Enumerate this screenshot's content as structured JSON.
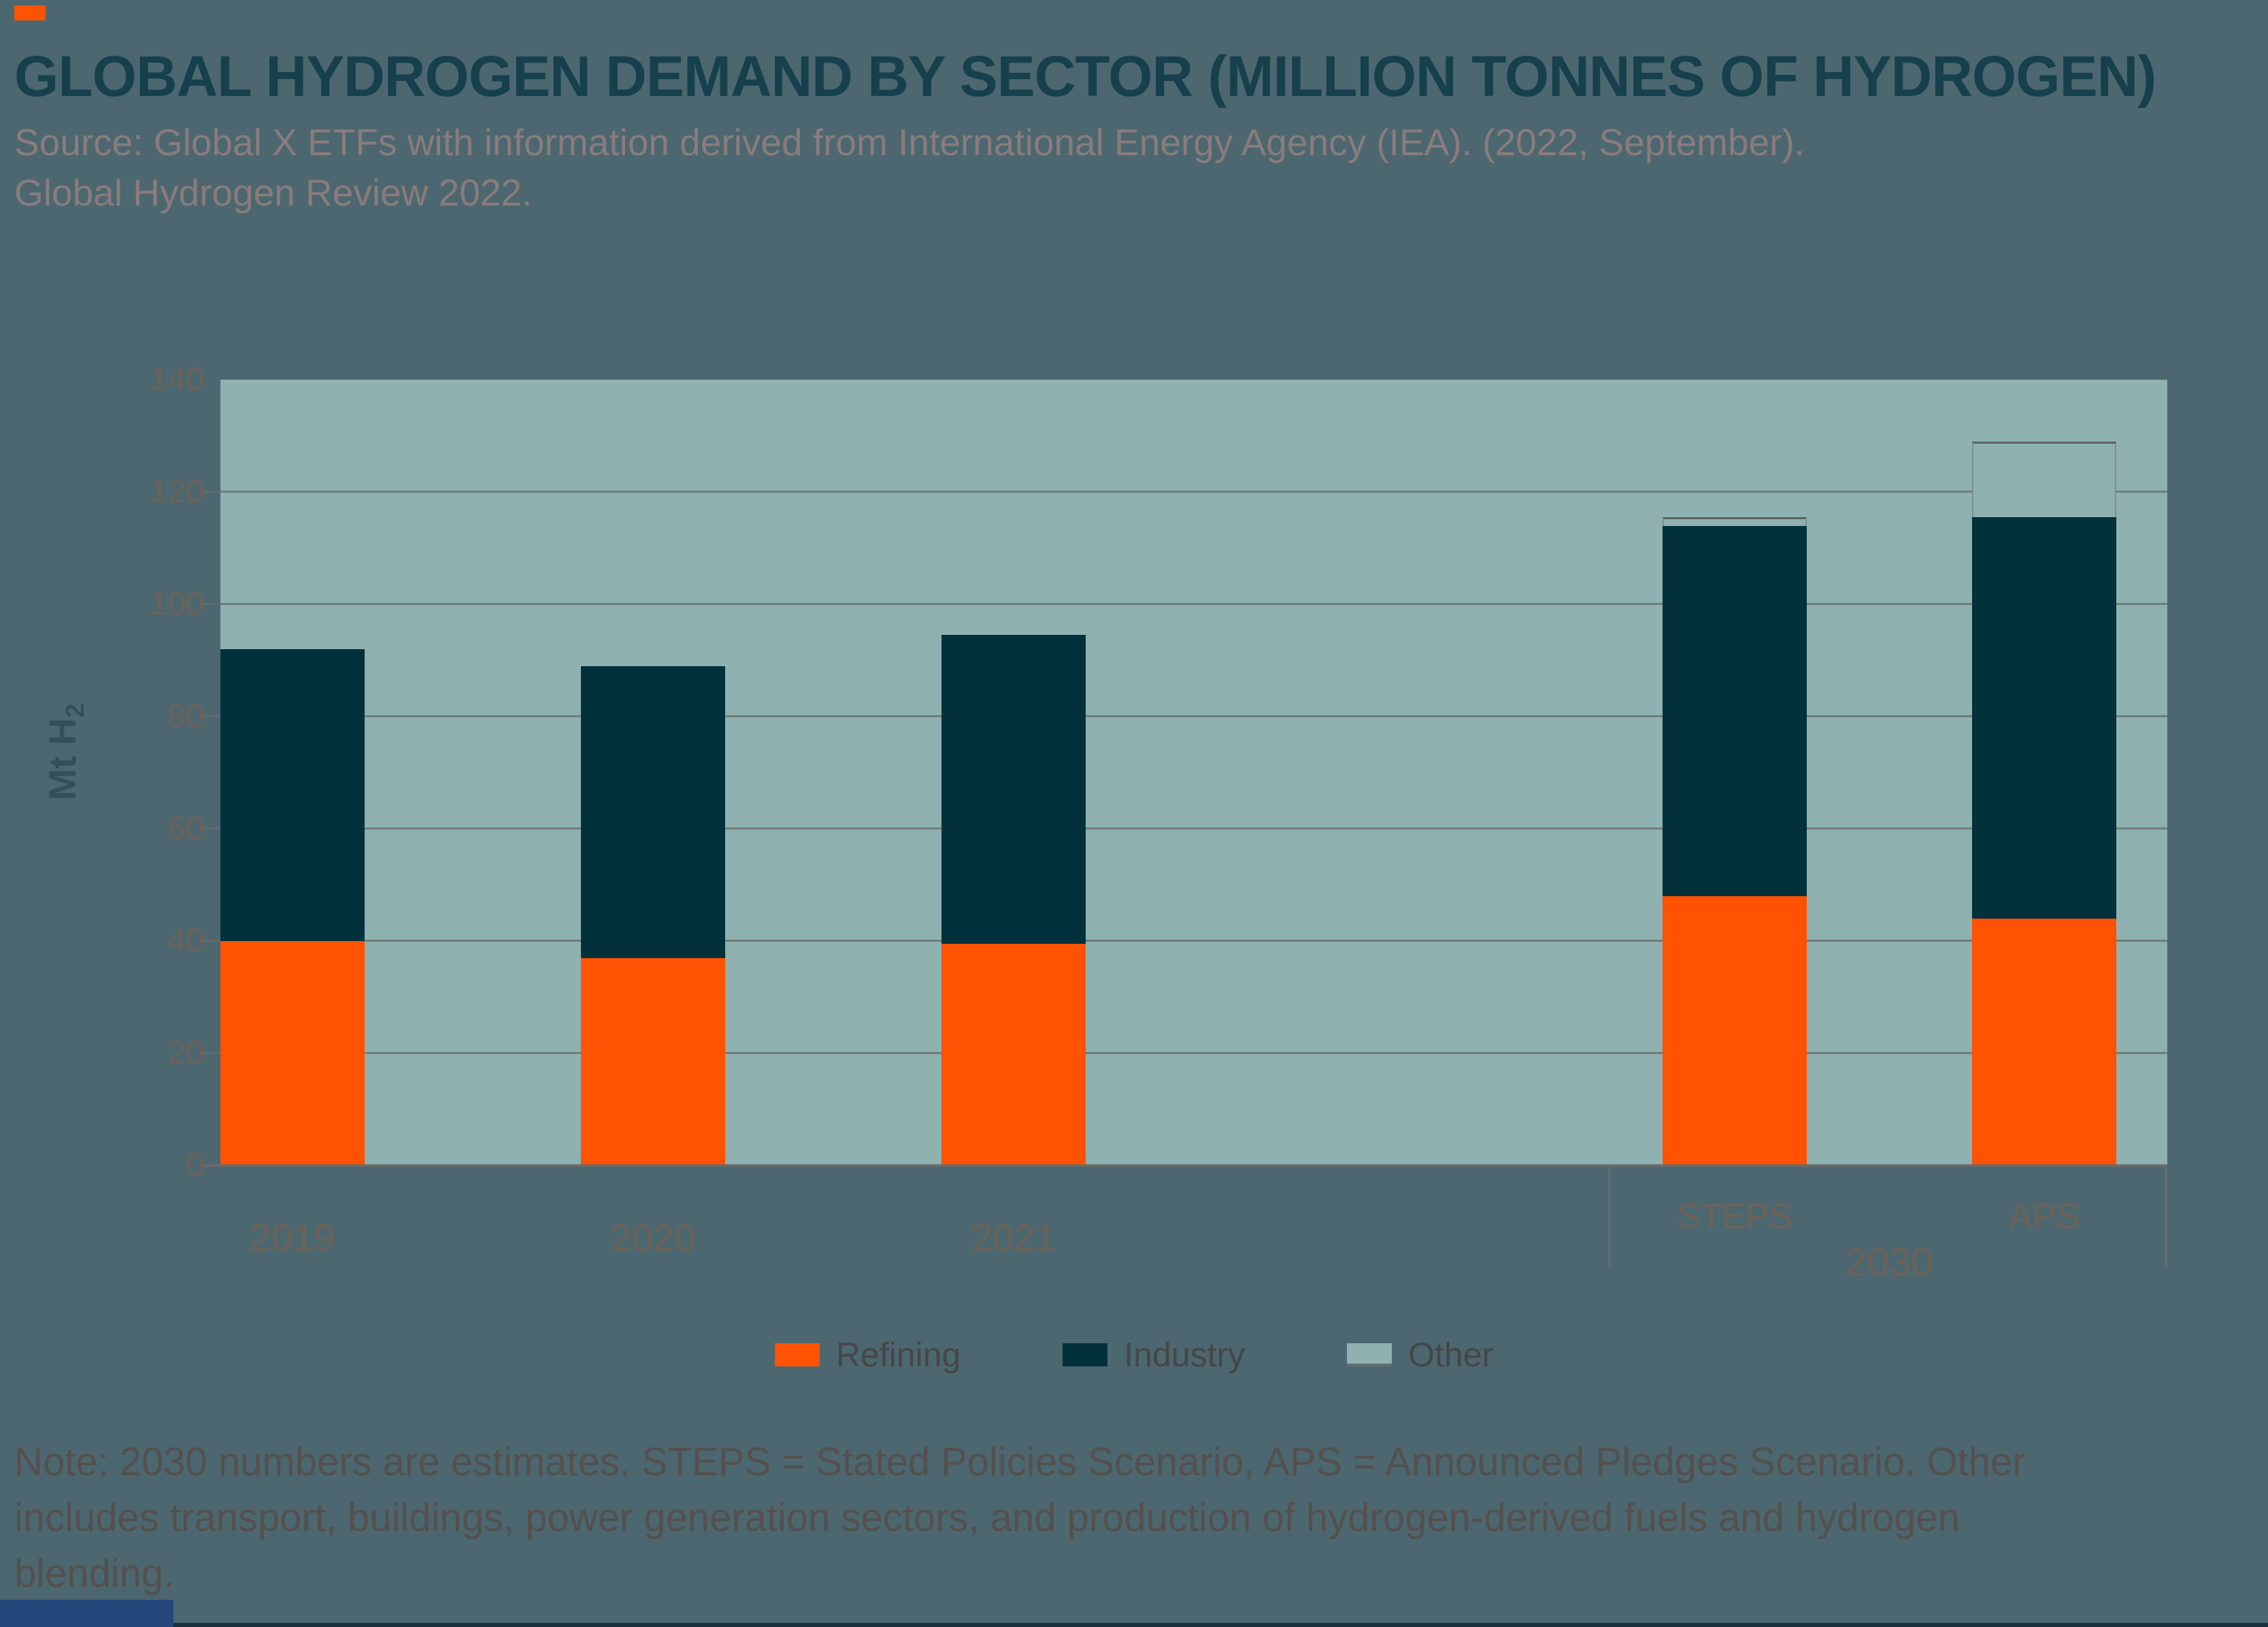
{
  "header": {
    "title": "GLOBAL HYDROGEN DEMAND BY SECTOR (MILLION TONNES OF HYDROGEN)",
    "source_lines": [
      "Source: Global X ETFs with information derived from International Energy Agency (IEA). (2022, September).",
      "Global Hydrogen Review 2022."
    ]
  },
  "colors": {
    "page_background": "#4C6770",
    "plot_background": "#8FB1AF",
    "refining": "#FF5203",
    "industry": "#02313B",
    "other": "#8FB1AF",
    "title_text": "#16404B",
    "accent_bar": "#FF5203",
    "footer_bar": "#24477C"
  },
  "chart_data": {
    "type": "bar",
    "stacked": true,
    "title": "Global Hydrogen Demand by Sector (Million Tonnes of Hydrogen)",
    "categories": [
      "2019",
      "2020",
      "2021",
      "STEPS",
      "APS"
    ],
    "group_label": "2030",
    "group_members": [
      "STEPS",
      "APS"
    ],
    "series": [
      {
        "name": "Refining",
        "color": "#FF5203",
        "values": [
          40,
          37,
          39.5,
          48,
          44
        ]
      },
      {
        "name": "Industry",
        "color": "#02313B",
        "values": [
          52,
          52,
          55,
          66,
          71.5
        ]
      },
      {
        "name": "Other",
        "color": "#8FB1AF",
        "values": [
          0,
          0,
          0,
          1.5,
          13.5
        ]
      }
    ],
    "totals": [
      92,
      89,
      94.5,
      115.5,
      129
    ],
    "xlabel": "",
    "ylabel": "Mt H",
    "ylabel_sub": "2",
    "ylim": [
      0,
      140
    ],
    "yticks": [
      0,
      20,
      40,
      60,
      80,
      100,
      120,
      140
    ],
    "grid": true,
    "legend_position": "bottom"
  },
  "legend": {
    "items": [
      {
        "label": "Refining",
        "color": "#FF5203"
      },
      {
        "label": "Industry",
        "color": "#02313B"
      },
      {
        "label": "Other",
        "color": "#8FB1AF"
      }
    ]
  },
  "note": {
    "lines": [
      "Note: 2030 numbers are estimates. STEPS = Stated Policies Scenario, APS = Announced Pledges Scenario. Other",
      "includes transport, buildings, power generation sectors, and production of hydrogen-derived fuels and hydrogen",
      "blending."
    ]
  }
}
